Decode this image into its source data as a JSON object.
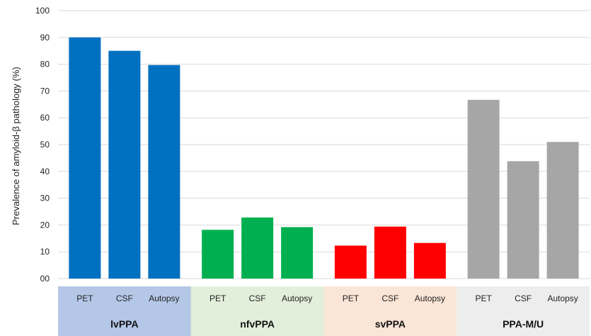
{
  "chart_data": {
    "type": "bar",
    "ylabel": "Prevalence of amyloid-β pathology (%)",
    "ylim": [
      0,
      100
    ],
    "yticks": [
      "00",
      "10",
      "20",
      "30",
      "40",
      "50",
      "60",
      "70",
      "80",
      "90",
      "100"
    ],
    "grid": true,
    "groups": [
      {
        "name": "lvPPA",
        "bar_color": "#0070C0",
        "band_color": "#B4C7E7",
        "bars": [
          {
            "label": "PET",
            "value": 90
          },
          {
            "label": "CSF",
            "value": 85
          },
          {
            "label": "Autopsy",
            "value": 79.7
          }
        ]
      },
      {
        "name": "nfvPPA",
        "bar_color": "#00B050",
        "band_color": "#E2EFDA",
        "bars": [
          {
            "label": "PET",
            "value": 18.2
          },
          {
            "label": "CSF",
            "value": 22.8
          },
          {
            "label": "Autopsy",
            "value": 19.2
          }
        ]
      },
      {
        "name": "svPPA",
        "bar_color": "#FF0000",
        "band_color": "#FBE5D6",
        "bars": [
          {
            "label": "PET",
            "value": 12.3
          },
          {
            "label": "CSF",
            "value": 19.4
          },
          {
            "label": "Autopsy",
            "value": 13.3
          }
        ]
      },
      {
        "name": "PPA-M/U",
        "bar_color": "#A6A6A6",
        "band_color": "#EDEDED",
        "bars": [
          {
            "label": "PET",
            "value": 66.7
          },
          {
            "label": "CSF",
            "value": 43.8
          },
          {
            "label": "Autopsy",
            "value": 51
          }
        ]
      }
    ]
  }
}
